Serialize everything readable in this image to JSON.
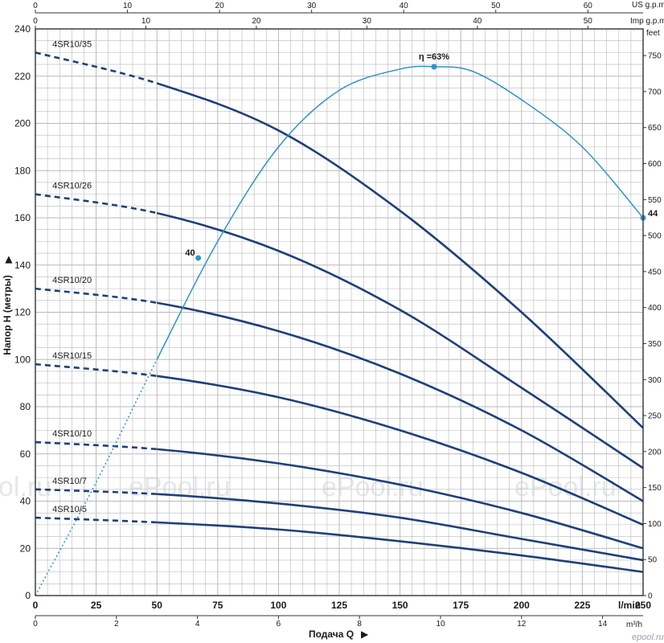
{
  "chart_data": {
    "type": "line",
    "colors": {
      "curve": "#1f3f7a",
      "efficiency": "#2f93c8",
      "grid": "#b9b9b9",
      "frame": "#333333"
    },
    "x_primary": {
      "unit": "l/min",
      "range": [
        0,
        250
      ],
      "ticks": [
        "0",
        "25",
        "50",
        "75",
        "100",
        "125",
        "150",
        "175",
        "200",
        "225",
        "250"
      ]
    },
    "x_m3h": {
      "unit": "m³/h",
      "range": [
        0,
        15
      ],
      "ticks": [
        "0",
        "2",
        "4",
        "6",
        "8",
        "10",
        "12",
        "14"
      ]
    },
    "x_us_gpm": {
      "unit": "US g.p.m.",
      "range": [
        0,
        66
      ],
      "ticks": [
        "0",
        "10",
        "20",
        "30",
        "40",
        "50",
        "60"
      ]
    },
    "x_imp_gpm": {
      "unit": "Imp g.p.m.",
      "range": [
        0,
        55
      ],
      "ticks": [
        "0",
        "10",
        "20",
        "30",
        "40",
        "50"
      ]
    },
    "y_primary": {
      "label": "Напор H (метры)",
      "range": [
        0,
        240
      ],
      "ticks": [
        "0",
        "20",
        "40",
        "60",
        "80",
        "100",
        "120",
        "140",
        "160",
        "180",
        "200",
        "220",
        "240"
      ]
    },
    "y_feet": {
      "unit": "feet",
      "range": [
        0,
        787
      ],
      "ticks": [
        "0",
        "50",
        "100",
        "150",
        "200",
        "250",
        "300",
        "350",
        "400",
        "450",
        "500",
        "550",
        "600",
        "650",
        "700",
        "750"
      ]
    },
    "xlabel": "Подача Q",
    "grid": true,
    "series": [
      {
        "name": "4SR10/35",
        "x": [
          0,
          50,
          100,
          150,
          200,
          250
        ],
        "values": [
          230,
          217,
          197,
          163,
          120,
          71
        ],
        "dashed_until": 50
      },
      {
        "name": "4SR10/26",
        "x": [
          0,
          50,
          100,
          150,
          200,
          250
        ],
        "values": [
          170,
          162,
          146,
          121,
          88,
          54
        ],
        "dashed_until": 50
      },
      {
        "name": "4SR10/20",
        "x": [
          0,
          50,
          100,
          150,
          200,
          250
        ],
        "values": [
          130,
          124,
          112,
          94,
          70,
          40
        ],
        "dashed_until": 50
      },
      {
        "name": "4SR10/15",
        "x": [
          0,
          50,
          100,
          150,
          200,
          250
        ],
        "values": [
          98,
          93,
          84,
          70,
          52,
          30
        ],
        "dashed_until": 50
      },
      {
        "name": "4SR10/10",
        "x": [
          0,
          50,
          100,
          150,
          200,
          250
        ],
        "values": [
          65,
          62,
          56,
          47,
          35,
          20
        ],
        "dashed_until": 50
      },
      {
        "name": "4SR10/7",
        "x": [
          0,
          50,
          100,
          150,
          200,
          250
        ],
        "values": [
          45,
          43,
          39,
          33,
          24,
          15
        ],
        "dashed_until": 50
      },
      {
        "name": "4SR10/5",
        "x": [
          0,
          50,
          100,
          150,
          200,
          250
        ],
        "values": [
          33,
          31,
          28,
          23,
          17,
          10
        ],
        "dashed_until": 50
      }
    ],
    "efficiency": {
      "label": "η =63%",
      "x": [
        0,
        25,
        50,
        75,
        100,
        125,
        150,
        165,
        180,
        200,
        225,
        250
      ],
      "values": [
        0,
        48,
        100,
        150,
        190,
        214,
        223,
        224,
        222,
        210,
        190,
        160
      ],
      "dashed_until": 50,
      "points": [
        {
          "label": "40",
          "x": 67,
          "value": 143
        },
        {
          "label": "η =63%",
          "x": 164,
          "value": 224
        },
        {
          "label": "44",
          "x": 250,
          "value": 160
        }
      ]
    },
    "watermark": "ePool.ru",
    "watermark_left": "ol.ru",
    "logo": "epool.ru"
  }
}
